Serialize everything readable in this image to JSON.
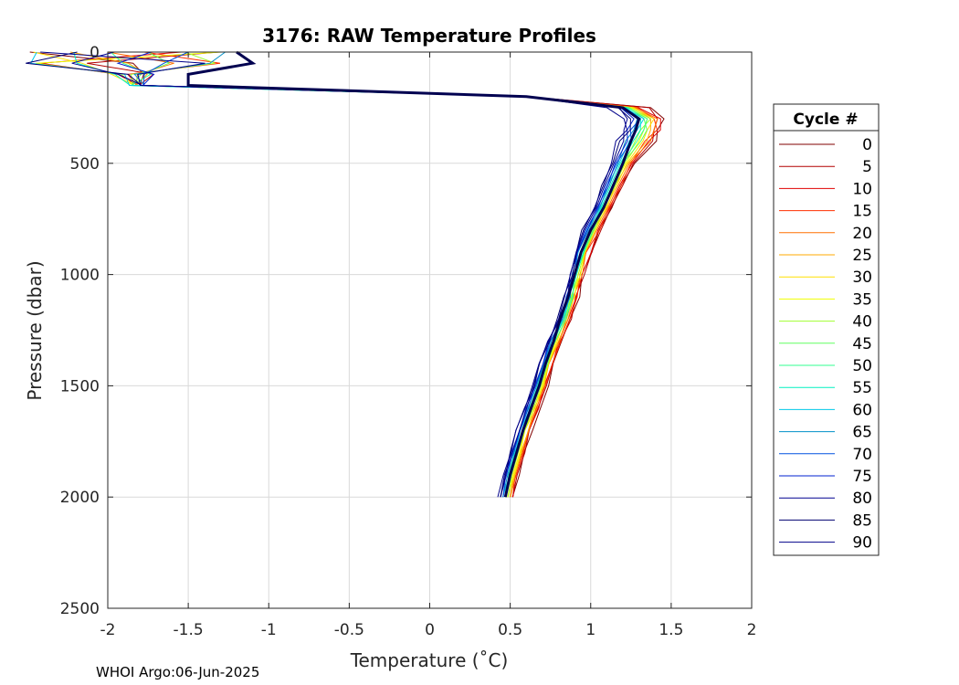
{
  "chart_data": {
    "type": "line",
    "title": "3176: RAW Temperature Profiles",
    "xlabel": "Temperature (˚C)",
    "ylabel": "Pressure (dbar)",
    "xlim": [
      -2,
      2
    ],
    "ylim": [
      0,
      2500
    ],
    "y_reversed": true,
    "xticks": [
      "-2",
      "-1.5",
      "-1",
      "-0.5",
      "0",
      "0.5",
      "1",
      "1.5",
      "2"
    ],
    "yticks": [
      "0",
      "500",
      "1000",
      "1500",
      "2000",
      "2500"
    ],
    "grid": true,
    "legend": {
      "title": "Cycle #",
      "placement": "right-outside",
      "entries": [
        "0",
        "5",
        "10",
        "15",
        "20",
        "25",
        "30",
        "35",
        "40",
        "45",
        "50",
        "55",
        "60",
        "65",
        "70",
        "75",
        "80",
        "85",
        "90"
      ]
    },
    "colors": [
      "#800000",
      "#b20000",
      "#e00000",
      "#ff3000",
      "#ff7000",
      "#ffa800",
      "#ffe000",
      "#f0ff00",
      "#a0ff30",
      "#60ff60",
      "#30ff90",
      "#00f0c0",
      "#00c8e8",
      "#0090c8",
      "#0050e0",
      "#0020d0",
      "#000090",
      "#000070",
      "#00008a"
    ],
    "representative_profile": {
      "pressure": [
        0,
        50,
        100,
        150,
        200,
        250,
        300,
        350,
        400,
        500,
        600,
        700,
        800,
        900,
        1000,
        1100,
        1200,
        1300,
        1400,
        1500,
        1600,
        1700,
        1800,
        1900,
        2000
      ],
      "temperature": [
        -1.2,
        -1.1,
        -1.5,
        -1.5,
        0.6,
        1.2,
        1.3,
        1.28,
        1.25,
        1.2,
        1.14,
        1.08,
        1.0,
        0.94,
        0.9,
        0.86,
        0.81,
        0.77,
        0.72,
        0.68,
        0.63,
        0.58,
        0.54,
        0.5,
        0.47
      ]
    }
  },
  "footer": "WHOI Argo:06-Jun-2025"
}
